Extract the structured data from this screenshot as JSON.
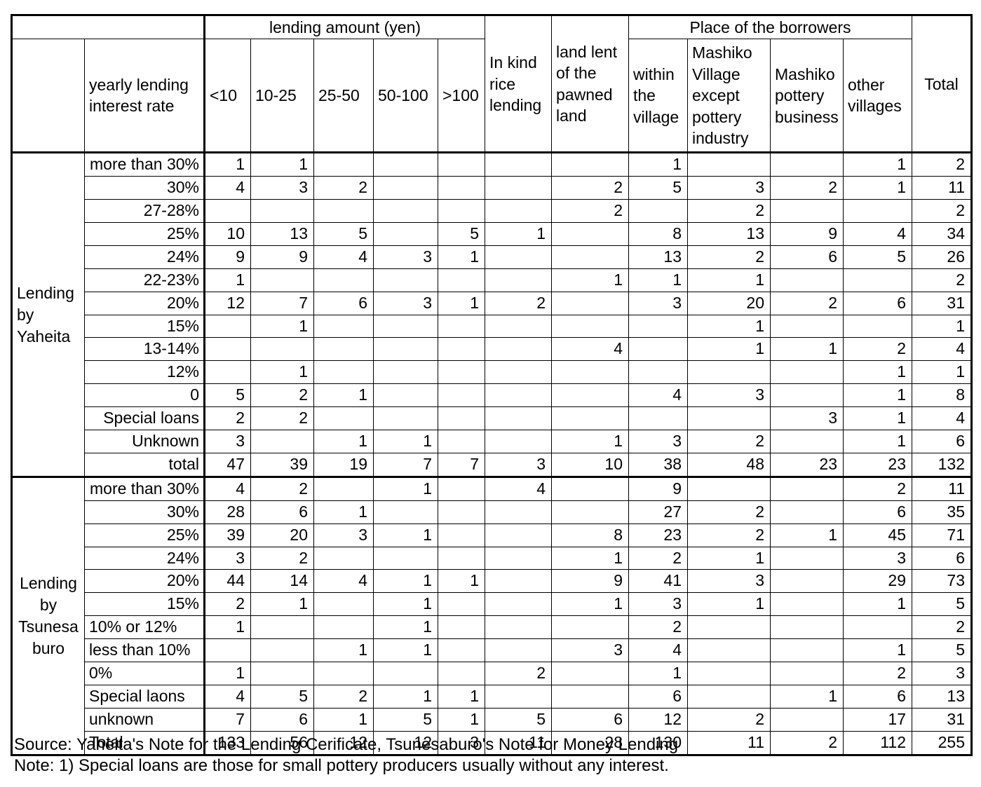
{
  "colors": {
    "border": "#000000",
    "background": "#ffffff",
    "text": "#000000"
  },
  "table": {
    "header": {
      "corner_blank": "",
      "rate_label": "yearly lending interest rate",
      "amount_group": "lending amount (yen)",
      "amount_cols": [
        "<10",
        "10-25",
        "25-50",
        "50-100",
        ">100"
      ],
      "inkind_label": "In kind rice lending",
      "landlent_label": "land lent of the pawned land",
      "place_group": "Place of the borrowers",
      "place_cols": [
        "within the village",
        "Mashiko Village except pottery industry",
        "Mashiko pottery business",
        "other villages"
      ],
      "total_label": "Total"
    },
    "sections": [
      {
        "name": "Lending by Yaheita",
        "name_align": "left",
        "rows": [
          {
            "label": "more than 30%",
            "align": "right",
            "values": [
              "1",
              "1",
              "",
              "",
              "",
              "",
              "",
              "1",
              "",
              "",
              "1",
              "2"
            ]
          },
          {
            "label": "30%",
            "align": "right",
            "values": [
              "4",
              "3",
              "2",
              "",
              "",
              "",
              "2",
              "5",
              "3",
              "2",
              "1",
              "11"
            ]
          },
          {
            "label": "27-28%",
            "align": "right",
            "values": [
              "",
              "",
              "",
              "",
              "",
              "",
              "2",
              "",
              "2",
              "",
              "",
              "2"
            ]
          },
          {
            "label": "25%",
            "align": "right",
            "values": [
              "10",
              "13",
              "5",
              "",
              "5",
              "1",
              "",
              "8",
              "13",
              "9",
              "4",
              "34"
            ]
          },
          {
            "label": "24%",
            "align": "right",
            "values": [
              "9",
              "9",
              "4",
              "3",
              "1",
              "",
              "",
              "13",
              "2",
              "6",
              "5",
              "26"
            ]
          },
          {
            "label": "22-23%",
            "align": "right",
            "values": [
              "1",
              "",
              "",
              "",
              "",
              "",
              "1",
              "1",
              "1",
              "",
              "",
              "2"
            ]
          },
          {
            "label": "20%",
            "align": "right",
            "values": [
              "12",
              "7",
              "6",
              "3",
              "1",
              "2",
              "",
              "3",
              "20",
              "2",
              "6",
              "31"
            ]
          },
          {
            "label": "15%",
            "align": "right",
            "values": [
              "",
              "1",
              "",
              "",
              "",
              "",
              "",
              "",
              "1",
              "",
              "",
              "1"
            ]
          },
          {
            "label": "13-14%",
            "align": "right",
            "values": [
              "",
              "",
              "",
              "",
              "",
              "",
              "4",
              "",
              "1",
              "1",
              "2",
              "4"
            ]
          },
          {
            "label": "12%",
            "align": "right",
            "values": [
              "",
              "1",
              "",
              "",
              "",
              "",
              "",
              "",
              "",
              "",
              "1",
              "1"
            ]
          },
          {
            "label": "0",
            "align": "right",
            "values": [
              "5",
              "2",
              "1",
              "",
              "",
              "",
              "",
              "4",
              "3",
              "",
              "1",
              "8"
            ]
          },
          {
            "label": "Special loans",
            "align": "right",
            "values": [
              "2",
              "2",
              "",
              "",
              "",
              "",
              "",
              "",
              "",
              "3",
              "1",
              "4"
            ]
          },
          {
            "label": "Unknown",
            "align": "right",
            "values": [
              "3",
              "",
              "1",
              "1",
              "",
              "",
              "1",
              "3",
              "2",
              "",
              "1",
              "6"
            ]
          },
          {
            "label": "total",
            "align": "right",
            "values": [
              "47",
              "39",
              "19",
              "7",
              "7",
              "3",
              "10",
              "38",
              "48",
              "23",
              "23",
              "132"
            ]
          }
        ]
      },
      {
        "name": "Lending by Tsunesaburo",
        "name_align": "center",
        "rows": [
          {
            "label": "more than 30%",
            "align": "right",
            "values": [
              "4",
              "2",
              "",
              "1",
              "",
              "4",
              "",
              "9",
              "",
              "",
              "2",
              "11"
            ]
          },
          {
            "label": "30%",
            "align": "right",
            "values": [
              "28",
              "6",
              "1",
              "",
              "",
              "",
              "",
              "27",
              "2",
              "",
              "6",
              "35"
            ]
          },
          {
            "label": "25%",
            "align": "right",
            "values": [
              "39",
              "20",
              "3",
              "1",
              "",
              "",
              "8",
              "23",
              "2",
              "1",
              "45",
              "71"
            ]
          },
          {
            "label": "24%",
            "align": "right",
            "values": [
              "3",
              "2",
              "",
              "",
              "",
              "",
              "1",
              "2",
              "1",
              "",
              "3",
              "6"
            ]
          },
          {
            "label": "20%",
            "align": "right",
            "values": [
              "44",
              "14",
              "4",
              "1",
              "1",
              "",
              "9",
              "41",
              "3",
              "",
              "29",
              "73"
            ]
          },
          {
            "label": "15%",
            "align": "right",
            "values": [
              "2",
              "1",
              "",
              "1",
              "",
              "",
              "1",
              "3",
              "1",
              "",
              "1",
              "5"
            ]
          },
          {
            "label": "10% or 12%",
            "align": "left",
            "values": [
              "1",
              "",
              "",
              "1",
              "",
              "",
              "",
              "2",
              "",
              "",
              "",
              "2"
            ]
          },
          {
            "label": "less than 10%",
            "align": "left",
            "values": [
              "",
              "",
              "1",
              "1",
              "",
              "",
              "3",
              "4",
              "",
              "",
              "1",
              "5"
            ]
          },
          {
            "label": "0%",
            "align": "left",
            "values": [
              "1",
              "",
              "",
              "",
              "",
              "2",
              "",
              "1",
              "",
              "",
              "2",
              "3"
            ]
          },
          {
            "label": "Special laons",
            "align": "left",
            "values": [
              "4",
              "5",
              "2",
              "1",
              "1",
              "",
              "",
              "6",
              "",
              "1",
              "6",
              "13"
            ]
          },
          {
            "label": "unknown",
            "align": "left",
            "values": [
              "7",
              "6",
              "1",
              "5",
              "1",
              "5",
              "6",
              "12",
              "2",
              "",
              "17",
              "31"
            ]
          },
          {
            "label": "Total",
            "align": "left",
            "values": [
              "133",
              "56",
              "12",
              "12",
              "3",
              "11",
              "28",
              "130",
              "11",
              "2",
              "112",
              "255"
            ]
          }
        ]
      }
    ]
  },
  "footer": {
    "source": "Source: Yaheita's Note for the Lending Cerificate, Tsunesaburo's Note for Money Lending",
    "note": "Note: 1) Special loans are those for small pottery producers usually without any interest."
  }
}
